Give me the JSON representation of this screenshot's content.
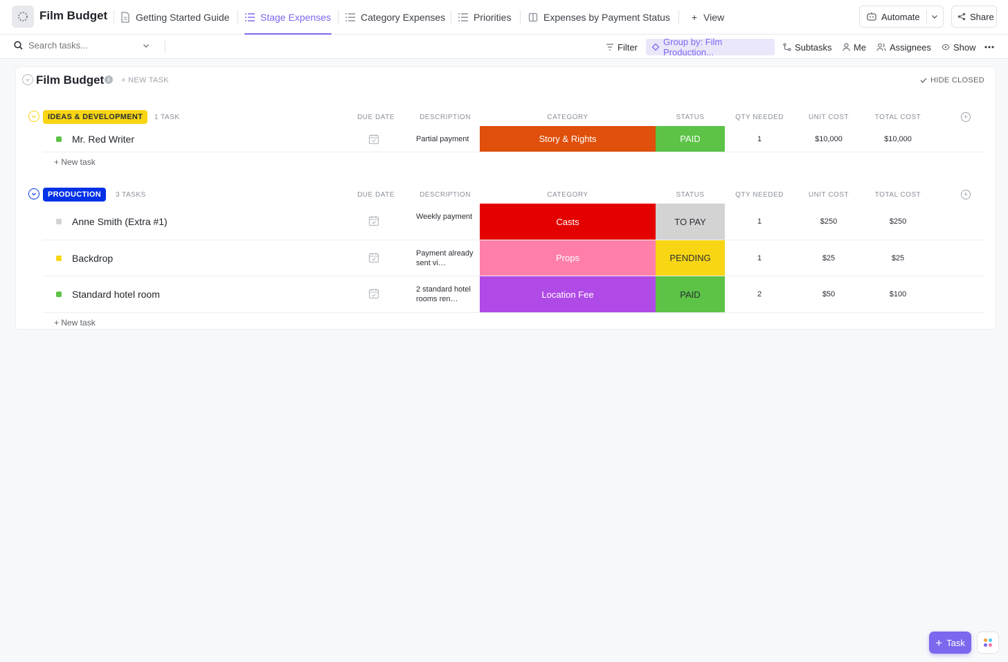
{
  "workspace": {
    "title": "Film Budget"
  },
  "tabs": [
    {
      "label": "Getting Started Guide"
    },
    {
      "label": "Stage Expenses"
    },
    {
      "label": "Category Expenses"
    },
    {
      "label": "Priorities"
    },
    {
      "label": "Expenses by Payment Status"
    }
  ],
  "view_label": "View",
  "automate_label": "Automate",
  "share_label": "Share",
  "search": {
    "placeholder": "Search tasks..."
  },
  "toolbar": {
    "filter": "Filter",
    "group_by": "Group by: Film Production...",
    "subtasks": "Subtasks",
    "me": "Me",
    "assignees": "Assignees",
    "show": "Show"
  },
  "list": {
    "title": "Film Budget",
    "new_task": "+ NEW TASK",
    "hide_closed": "HIDE CLOSED"
  },
  "columns": {
    "due_date": "DUE DATE",
    "description": "DESCRIPTION",
    "category": "CATEGORY",
    "status": "STATUS",
    "qty": "QTY NEEDED",
    "unit_cost": "UNIT COST",
    "total_cost": "TOTAL COST"
  },
  "groups": [
    {
      "label": "IDEAS & DEVELOPMENT",
      "count": "1 TASK",
      "color": "#f8d614",
      "text_color": "#292d34",
      "new_task": "+ New task",
      "tasks": [
        {
          "name": "Mr. Red Writer",
          "dot": "#5cc346",
          "desc": "Partial payment",
          "category": "Story & Rights",
          "cat_color": "#e04f0b",
          "status": "PAID",
          "status_color": "#5cc346",
          "status_text": "#ffffff",
          "qty": "1",
          "unit": "$10,000",
          "total": "$10,000"
        }
      ]
    },
    {
      "label": "PRODUCTION",
      "count": "3 TASKS",
      "color": "#0231e8",
      "text_color": "#ffffff",
      "new_task": "+ New task",
      "tasks": [
        {
          "name": "Anne Smith (Extra #1)",
          "dot": "#d3d3d3",
          "desc": "Weekly payment",
          "category": "Casts",
          "cat_color": "#e50000",
          "status": "TO PAY",
          "status_color": "#d3d3d3",
          "status_text": "#292d34",
          "qty": "1",
          "unit": "$250",
          "total": "$250"
        },
        {
          "name": "Backdrop",
          "dot": "#f8d614",
          "desc": "Payment al­ready sent vi…",
          "category": "Props",
          "cat_color": "#ff7fab",
          "status": "PENDING",
          "status_color": "#f8d614",
          "status_text": "#292d34",
          "qty": "1",
          "unit": "$25",
          "total": "$25"
        },
        {
          "name": "Standard hotel room",
          "dot": "#5cc346",
          "desc": "2 standard ho­tel rooms ren…",
          "category": "Location Fee",
          "cat_color": "#b04ae6",
          "status": "PAID",
          "status_color": "#5cc346",
          "status_text": "#ffffff",
          "qty": "2",
          "unit": "$50",
          "total": "$100"
        }
      ]
    }
  ],
  "fab_label": "Task"
}
